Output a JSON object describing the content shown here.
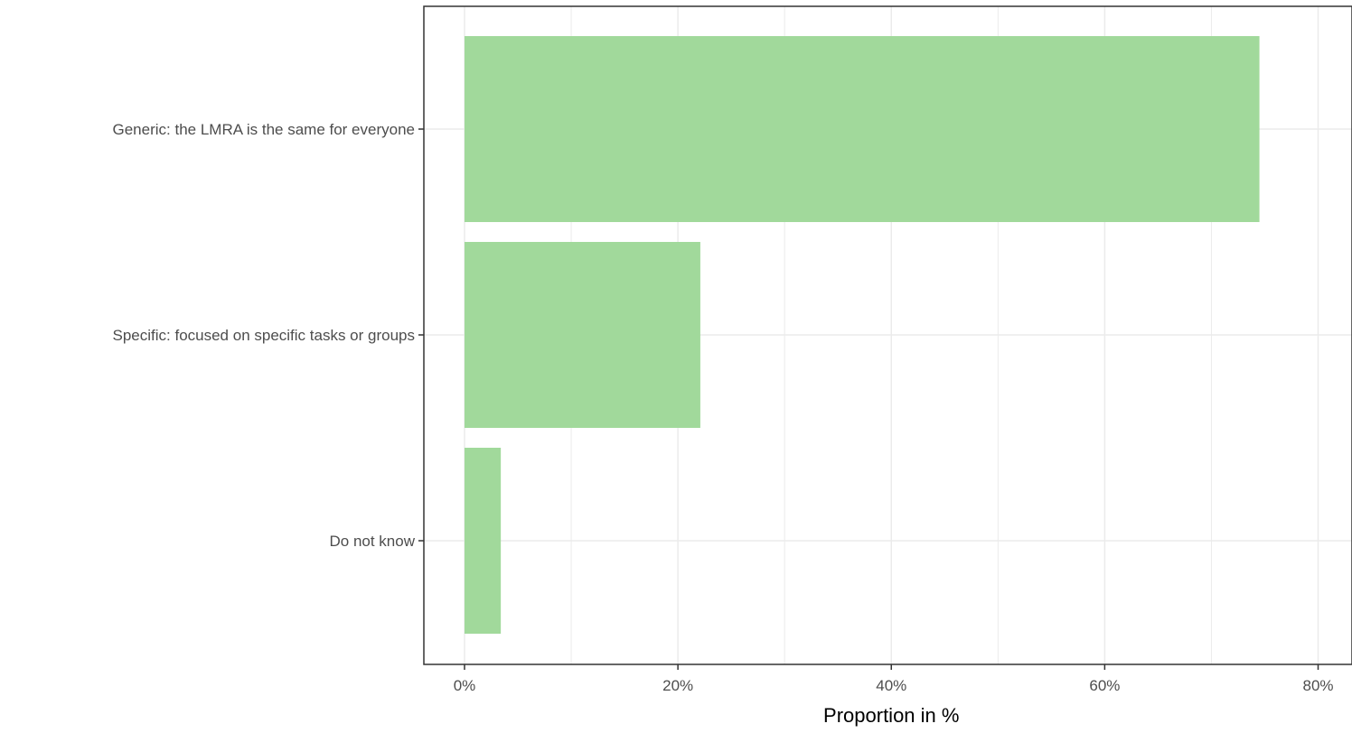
{
  "chart_data": {
    "type": "bar",
    "orientation": "horizontal",
    "categories": [
      "Generic: the LMRA is the same for everyone",
      "Specific: focused on specific tasks or groups",
      "Do not know"
    ],
    "values": [
      74.5,
      22.1,
      3.4
    ],
    "xlabel": "Proportion in %",
    "ylabel": "",
    "xlim": [
      0,
      80
    ],
    "x_ticks": [
      0,
      20,
      40,
      60,
      80
    ],
    "x_tick_labels": [
      "0%",
      "20%",
      "40%",
      "60%",
      "80%"
    ],
    "grid": true,
    "bar_color": "#a1d99b",
    "panel_border_color": "#333333",
    "grid_color": "#ebebeb"
  }
}
